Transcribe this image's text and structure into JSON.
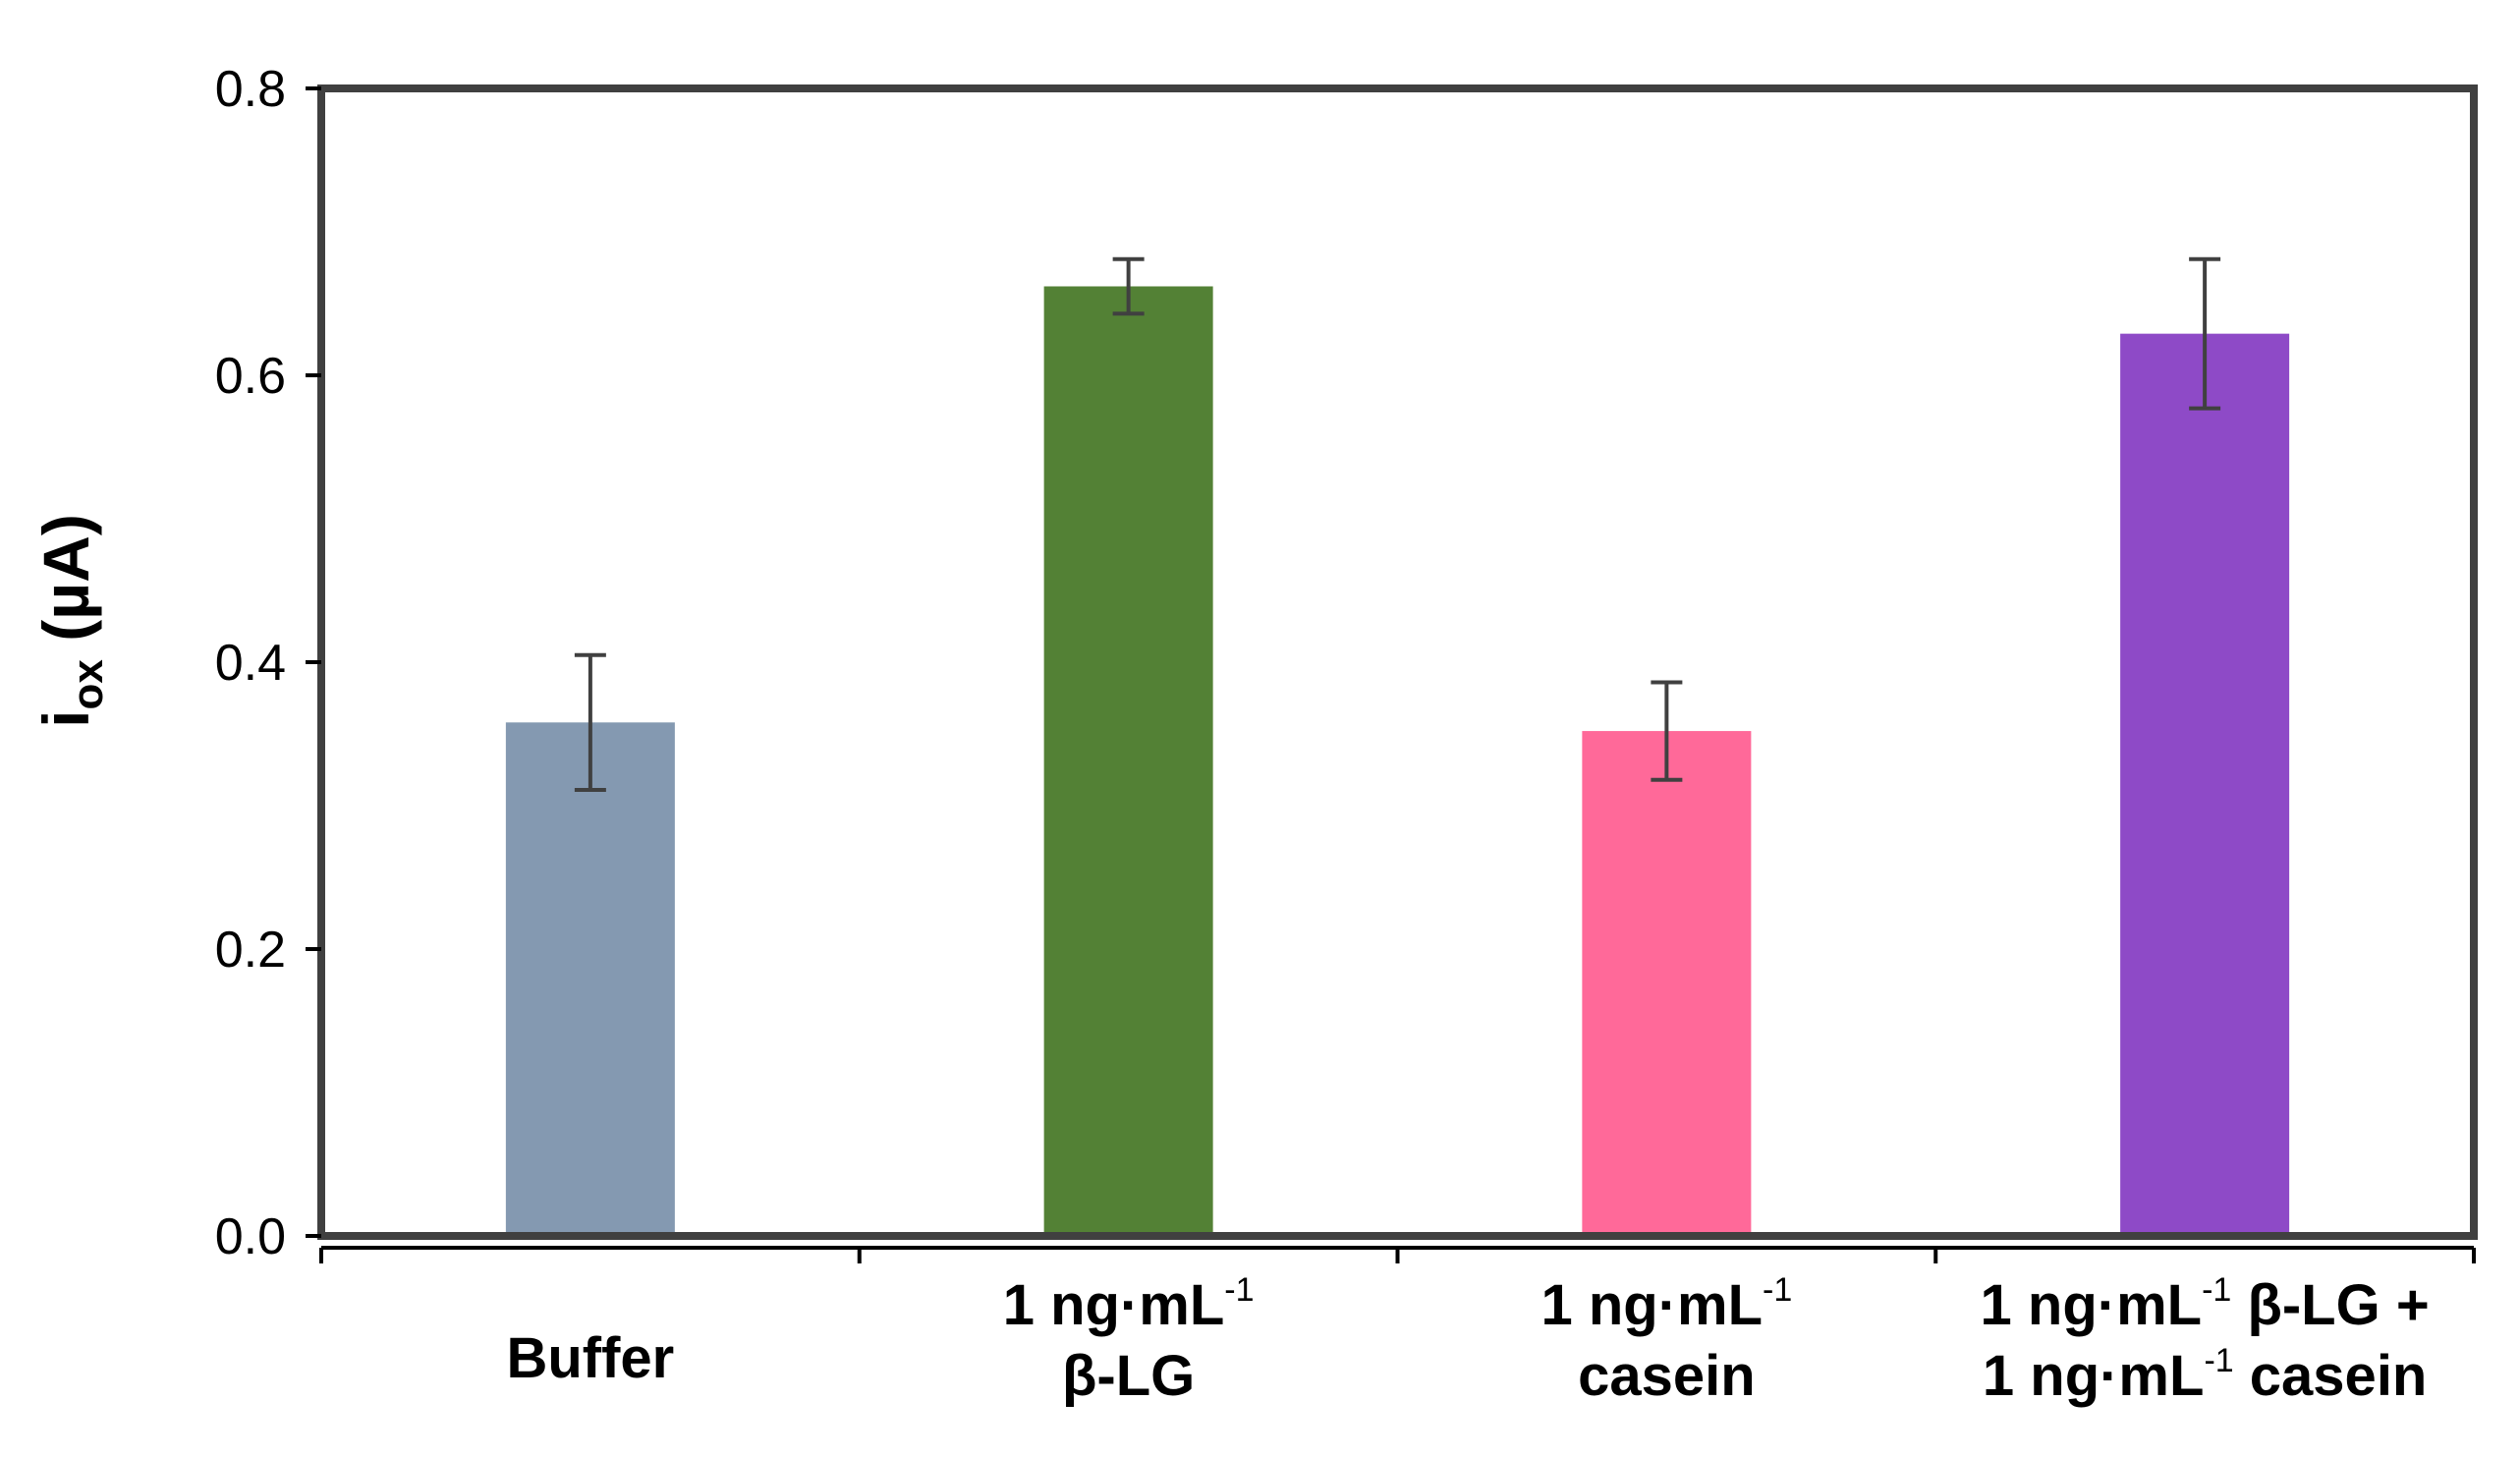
{
  "chart_data": {
    "type": "bar",
    "title": "",
    "xlabel": "",
    "ylabel": {
      "main": "i",
      "subscript": "ox",
      "unit": " (µA)"
    },
    "ylim": [
      0,
      0.8
    ],
    "yticks": [
      "0.0",
      "0.2",
      "0.4",
      "0.6",
      "0.8"
    ],
    "ytick_values": [
      0,
      0.2,
      0.4,
      0.6,
      0.8
    ],
    "grid": false,
    "categories": [
      {
        "name": "Buffer",
        "lines": [
          [
            {
              "t": "Buffer"
            }
          ]
        ]
      },
      {
        "name": "1 ng·mL-1 β-LG",
        "lines": [
          [
            {
              "t": "1 ng·mL"
            },
            {
              "t": "-1",
              "sup": true
            }
          ],
          [
            {
              "t": "β-LG"
            }
          ]
        ]
      },
      {
        "name": "1 ng·mL-1 casein",
        "lines": [
          [
            {
              "t": "1 ng·mL"
            },
            {
              "t": "-1",
              "sup": true
            }
          ],
          [
            {
              "t": "casein"
            }
          ]
        ]
      },
      {
        "name": "1 ng·mL-1 β-LG + 1 ng·mL-1 casein",
        "lines": [
          [
            {
              "t": "1 ng·mL"
            },
            {
              "t": "-1",
              "sup": true
            },
            {
              "t": " β-LG +"
            }
          ],
          [
            {
              "t": "1 ng·mL"
            },
            {
              "t": "-1",
              "sup": true
            },
            {
              "t": " casein"
            }
          ]
        ]
      }
    ],
    "values": [
      0.358,
      0.662,
      0.352,
      0.629
    ],
    "errors": [
      0.047,
      0.019,
      0.034,
      0.052
    ],
    "colors": [
      "#8499B1",
      "#538135",
      "#FF6999",
      "#8E4AC7"
    ]
  }
}
